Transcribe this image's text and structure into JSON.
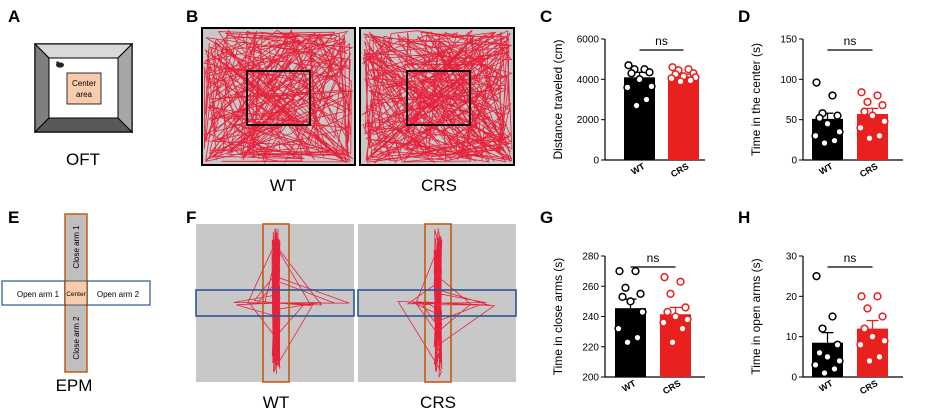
{
  "panels": {
    "A": {
      "letter": "A",
      "caption": "OFT",
      "center_label_1": "Center",
      "center_label_2": "area"
    },
    "B": {
      "letter": "B",
      "label_wt": "WT",
      "label_crs": "CRS"
    },
    "C": {
      "letter": "C"
    },
    "D": {
      "letter": "D"
    },
    "E": {
      "letter": "E",
      "caption": "EPM",
      "open_arm_1": "Open arm 1",
      "open_arm_2": "Open arm 2",
      "close_arm_1": "Close arm 1",
      "close_arm_2": "Close arm 2",
      "center": "Center"
    },
    "F": {
      "letter": "F",
      "label_wt": "WT",
      "label_crs": "CRS"
    },
    "G": {
      "letter": "G"
    },
    "H": {
      "letter": "H"
    }
  },
  "colors": {
    "wt": "#000000",
    "crs": "#e8211f",
    "track": "#e8213a",
    "arena": "#c8c8c8",
    "open_arm_box": "#2f5597",
    "close_arm_box": "#c55a11",
    "center_fill": "#f8cbad"
  },
  "chart_data": [
    {
      "id": "C",
      "type": "bar",
      "categories": [
        "WT",
        "CRS"
      ],
      "values": [
        4100,
        4150
      ],
      "errors": [
        250,
        100
      ],
      "points": [
        [
          4700,
          4500,
          4500,
          4350,
          4300,
          4000,
          3650,
          3600,
          3000,
          2700
        ],
        [
          4600,
          4500,
          4450,
          4300,
          4250,
          4150,
          4100,
          4050,
          3950,
          3900
        ]
      ],
      "ylabel": "Distance traveled (cm)",
      "ylim": [
        0,
        6000
      ],
      "yticks": [
        0,
        2000,
        4000,
        6000
      ],
      "annotation": "ns"
    },
    {
      "id": "D",
      "type": "bar",
      "categories": [
        "WT",
        "CRS"
      ],
      "values": [
        51,
        57
      ],
      "errors": [
        7,
        7
      ],
      "points": [
        [
          96,
          80,
          58,
          55,
          52,
          45,
          35,
          30,
          24,
          21
        ],
        [
          84,
          80,
          72,
          68,
          60,
          55,
          48,
          40,
          30,
          27
        ]
      ],
      "ylabel": "Time in the center (s)",
      "ylim": [
        0,
        150
      ],
      "yticks": [
        0,
        50,
        100,
        150
      ],
      "annotation": "ns"
    },
    {
      "id": "G",
      "type": "bar",
      "categories": [
        "WT",
        "CRS"
      ],
      "values": [
        245.5,
        241.5
      ],
      "errors": [
        6,
        4.5
      ],
      "points": [
        [
          270,
          270,
          259,
          255,
          253,
          250,
          243,
          232,
          226,
          223
        ],
        [
          266,
          263,
          255,
          246,
          243,
          240,
          238,
          236,
          232,
          223
        ]
      ],
      "ylabel": "Time in close arms (s)",
      "ylim": [
        200,
        280
      ],
      "yticks": [
        200,
        220,
        240,
        260,
        280
      ],
      "annotation": "ns"
    },
    {
      "id": "H",
      "type": "bar",
      "categories": [
        "WT",
        "CRS"
      ],
      "values": [
        8.5,
        12
      ],
      "errors": [
        2.5,
        2
      ],
      "points": [
        [
          25,
          15,
          12,
          8,
          6,
          5,
          4,
          3,
          2,
          1
        ],
        [
          20,
          20,
          17,
          15,
          12,
          10,
          9,
          8,
          5,
          4
        ]
      ],
      "ylabel": "Time in open arms (s)",
      "ylim": [
        0,
        30
      ],
      "yticks": [
        0,
        10,
        20,
        30
      ],
      "annotation": "ns"
    }
  ]
}
